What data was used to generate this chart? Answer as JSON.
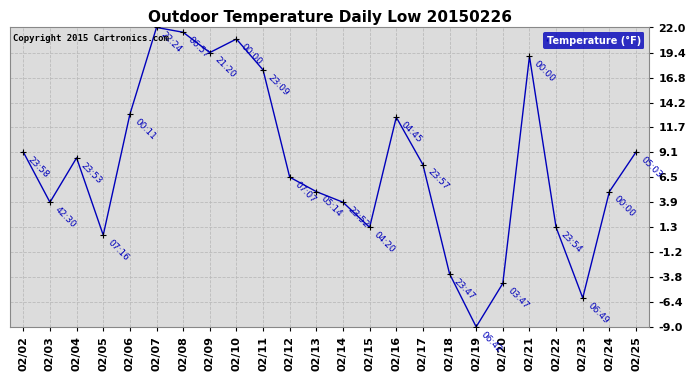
{
  "title": "Outdoor Temperature Daily Low 20150226",
  "copyright": "Copyright 2015 Cartronics.com",
  "legend_label": "Temperature (°F)",
  "ylim": [
    -9.0,
    22.0
  ],
  "yticks": [
    -9.0,
    -6.4,
    -3.8,
    -1.2,
    1.3,
    3.9,
    6.5,
    9.1,
    11.7,
    14.2,
    16.8,
    19.4,
    22.0
  ],
  "dates": [
    "02/02",
    "02/03",
    "02/04",
    "02/05",
    "02/06",
    "02/07",
    "02/08",
    "02/09",
    "02/10",
    "02/11",
    "02/12",
    "02/13",
    "02/14",
    "02/15",
    "02/16",
    "02/17",
    "02/18",
    "02/19",
    "02/20",
    "02/21",
    "02/22",
    "02/23",
    "02/24",
    "02/25"
  ],
  "values": [
    9.1,
    3.9,
    8.5,
    0.5,
    13.0,
    22.0,
    21.5,
    19.4,
    20.8,
    17.6,
    6.5,
    5.0,
    3.9,
    1.3,
    12.7,
    7.8,
    -3.5,
    -9.0,
    -4.5,
    19.0,
    1.3,
    -6.0,
    5.0,
    9.1
  ],
  "time_labels": [
    "23:58",
    "42:30",
    "23:53",
    "07:16",
    "00:11",
    "22:24",
    "06:57",
    "21:20",
    "00:00",
    "23:09",
    "07:07",
    "05:14",
    "23:52",
    "04:20",
    "04:45",
    "23:57",
    "23:47",
    "06:42",
    "03:47",
    "00:00",
    "23:54",
    "06:49",
    "00:00",
    "05:03"
  ],
  "line_color": "#0000bb",
  "marker_color": "#000000",
  "bg_color": "#ffffff",
  "plot_bg": "#dcdcdc",
  "grid_color": "#bbbbbb",
  "title_fontsize": 11,
  "tick_fontsize": 8,
  "annot_fontsize": 6.5
}
